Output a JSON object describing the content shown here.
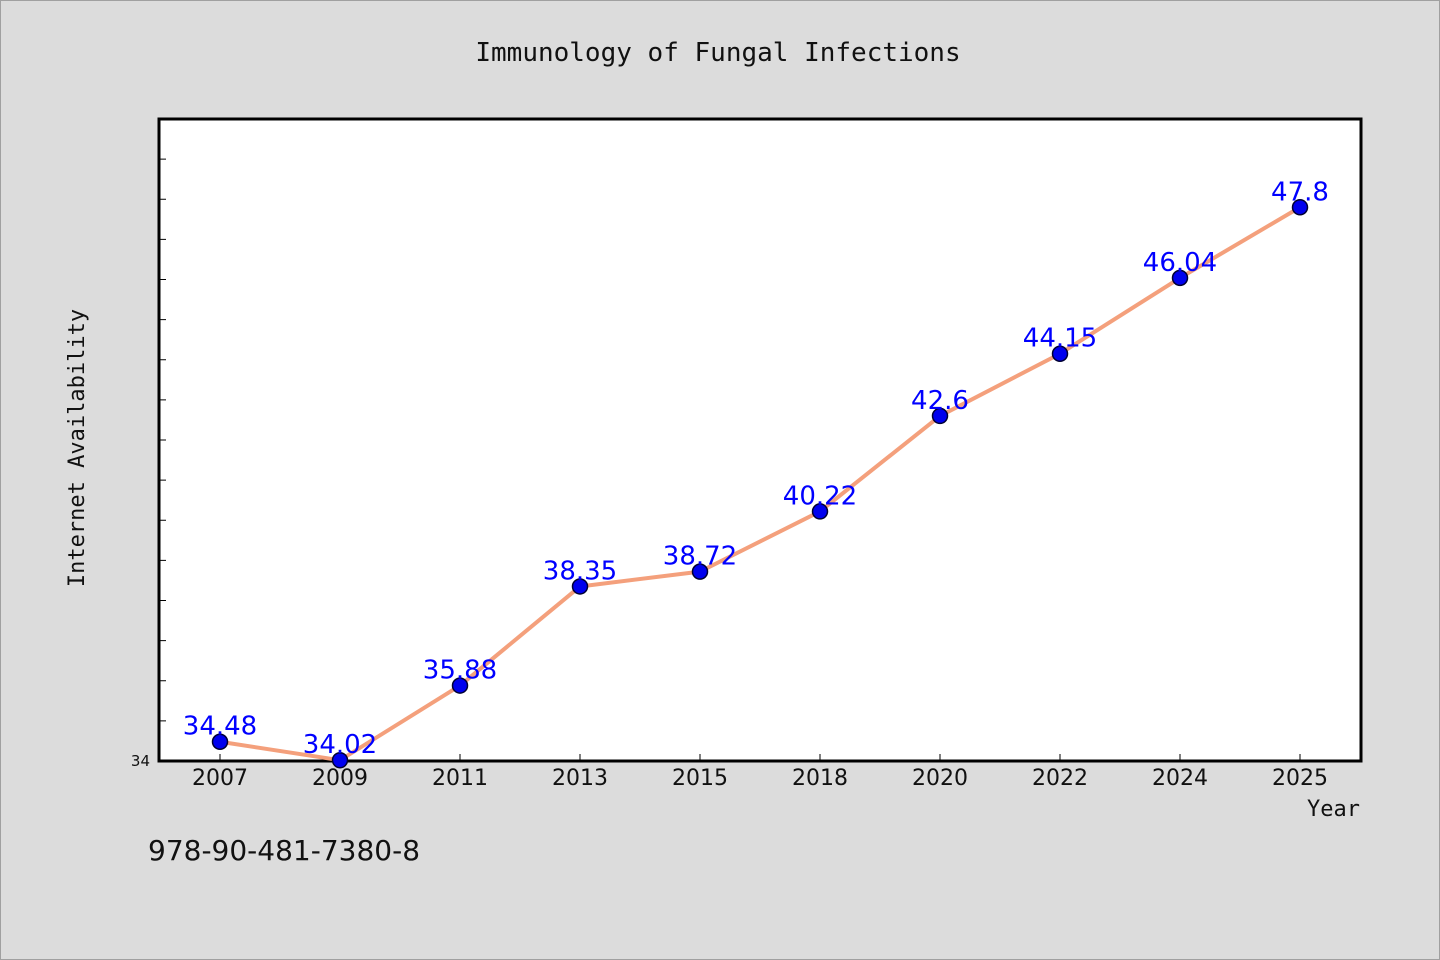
{
  "isbn": "978-90-481-7380-8",
  "chart_data": {
    "type": "line",
    "title": "Immunology of Fungal Infections",
    "xlabel": "Year",
    "ylabel": "Internet Availability",
    "categories": [
      "2007",
      "2009",
      "2011",
      "2013",
      "2015",
      "2018",
      "2020",
      "2022",
      "2024",
      "2025"
    ],
    "values": [
      34.48,
      34.02,
      35.88,
      38.35,
      38.72,
      40.22,
      42.6,
      44.15,
      46.04,
      47.8
    ],
    "data_labels": [
      "34.48",
      "34.02",
      "35.88",
      "38.35",
      "38.72",
      "40.22",
      "42.6",
      "44.15",
      "46.04",
      "47.8"
    ],
    "ylim": [
      34,
      50
    ],
    "yticks_labeled": [
      "34"
    ],
    "grid": false,
    "legend": "none",
    "colors": {
      "line": "#f4a07c",
      "marker": "#0000ee",
      "marker_edge": "#000033",
      "data_label": "#0000ff",
      "plot_background": "#ffffff",
      "page_background": "#dcdcdc"
    }
  }
}
